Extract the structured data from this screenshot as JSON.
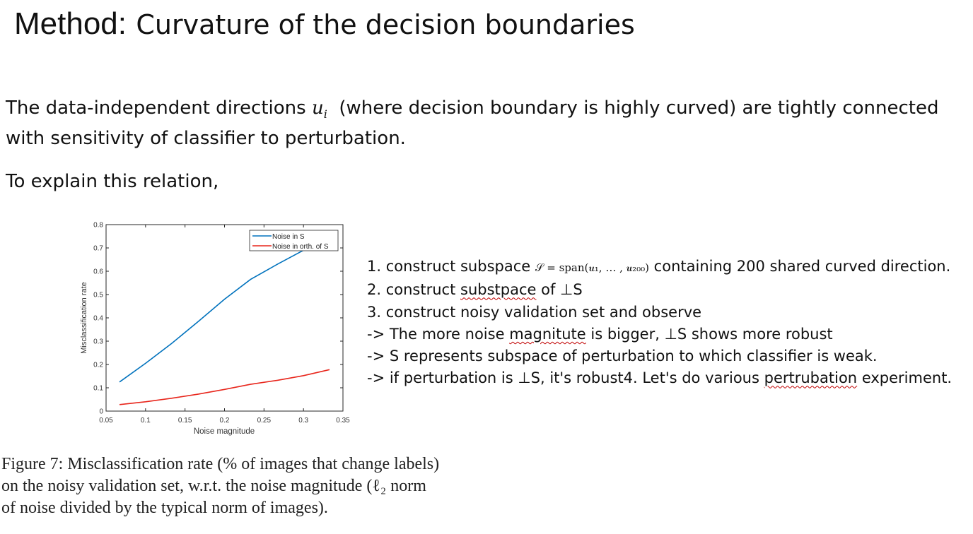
{
  "slide": {
    "title_prefix": "Method:",
    "title_main": "Curvature of the decision boundaries",
    "intro_before": "The data-independent directions",
    "intro_math": "u",
    "intro_math_sub": "i",
    "intro_after": "(where decision boundary is highly curved) are tightly connected with sensitivity of classifier to perturbation.",
    "explain": "To explain this relation,",
    "steps": [
      {
        "pre": "1. construct subspace",
        "math": "𝒮 = span(𝒖₁, … , 𝒖₂₀₀)",
        "post": "containing 200 shared curved direction."
      },
      {
        "pre": "2. construct",
        "squig": "substpace",
        "post": "of ⊥S"
      },
      {
        "pre": "3. construct noisy validation set and observe"
      },
      {
        "pre": "-> The more noise",
        "squig": "magnitute",
        "post": "is bigger, ⊥S shows more robust"
      },
      {
        "pre": "-> S represents subspace of perturbation to which classifier is weak."
      },
      {
        "pre": "-> if perturbation is ⊥S, it's robust4. Let's do various",
        "squig": "pertrubation",
        "post": "experiment."
      }
    ],
    "caption": "Figure 7:  Misclassification rate (% of images that change labels) on the noisy validation set, w.r.t. the noise magnitude (ℓ₂ norm of noise divided by the typical norm of images)."
  },
  "chart_data": {
    "type": "line",
    "xlabel": "Noise magnitude",
    "ylabel": "Misclassification rate",
    "xlim": [
      0.05,
      0.35
    ],
    "ylim": [
      0,
      0.8
    ],
    "xticks": [
      "0.05",
      "0.1",
      "0.15",
      "0.2",
      "0.25",
      "0.3",
      "0.35"
    ],
    "yticks": [
      "0",
      "0.1",
      "0.2",
      "0.3",
      "0.4",
      "0.5",
      "0.6",
      "0.7",
      "0.8"
    ],
    "legend_position": "top-right",
    "grid": false,
    "series": [
      {
        "name": "Noise in S",
        "color": "#0072bd",
        "x": [
          0.067,
          0.1,
          0.133,
          0.167,
          0.2,
          0.233,
          0.267,
          0.3
        ],
        "y": [
          0.125,
          0.205,
          0.29,
          0.385,
          0.48,
          0.565,
          0.63,
          0.69
        ]
      },
      {
        "name": "Noise in orth. of S",
        "color": "#e8261c",
        "x": [
          0.067,
          0.1,
          0.133,
          0.167,
          0.2,
          0.233,
          0.267,
          0.3,
          0.333
        ],
        "y": [
          0.028,
          0.04,
          0.055,
          0.073,
          0.093,
          0.115,
          0.132,
          0.152,
          0.178
        ]
      }
    ]
  }
}
